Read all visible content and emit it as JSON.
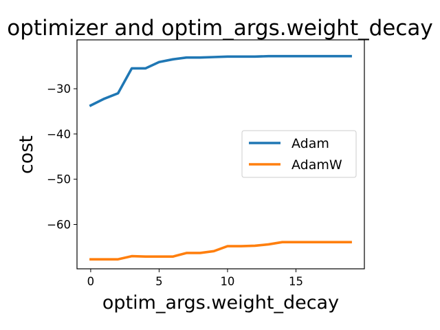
{
  "chart_data": {
    "type": "line",
    "title": "optimizer and optim_args.weight_decay",
    "xlabel": "optim_args.weight_decay",
    "ylabel": "cost",
    "xlim": [
      -1.0,
      20.0
    ],
    "ylim": [
      -69.8,
      -19.2
    ],
    "xticks": [
      0,
      5,
      10,
      15
    ],
    "yticks": [
      -30,
      -40,
      -50,
      -60
    ],
    "grid": false,
    "legend_position": "center-right",
    "x": [
      0,
      1,
      2,
      3,
      4,
      5,
      6,
      7,
      8,
      9,
      10,
      11,
      12,
      13,
      14,
      15,
      16,
      17,
      18,
      19
    ],
    "series": [
      {
        "name": "Adam",
        "color": "#1f77b4",
        "values": [
          -33.7,
          -32.2,
          -31.0,
          -25.5,
          -25.5,
          -24.1,
          -23.5,
          -23.1,
          -23.1,
          -23.0,
          -22.9,
          -22.9,
          -22.9,
          -22.8,
          -22.8,
          -22.8,
          -22.8,
          -22.8,
          -22.8,
          -22.8
        ]
      },
      {
        "name": "AdamW",
        "color": "#ff7f0e",
        "values": [
          -67.7,
          -67.7,
          -67.7,
          -67.0,
          -67.1,
          -67.1,
          -67.1,
          -66.3,
          -66.3,
          -65.9,
          -64.8,
          -64.8,
          -64.7,
          -64.4,
          -63.9,
          -63.9,
          -63.9,
          -63.9,
          -63.9,
          -63.9
        ]
      }
    ]
  }
}
